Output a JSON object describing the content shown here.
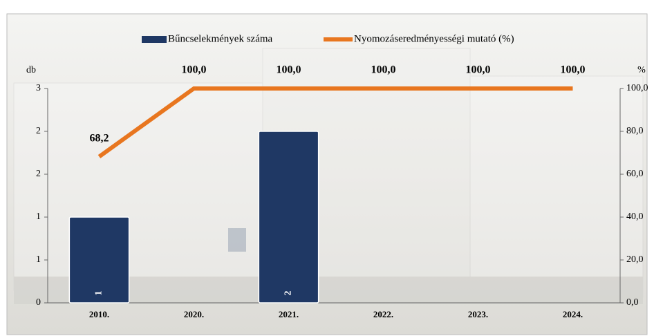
{
  "chart_data": {
    "type": "bar",
    "categories": [
      "2010.",
      "2020.",
      "2021.",
      "2022.",
      "2023.",
      "2024."
    ],
    "y_label": "db",
    "y2_label": "%",
    "series": [
      {
        "name": "Bűncselekmények száma",
        "type": "bar",
        "color": "#1f3864",
        "values": [
          1,
          0,
          2,
          0,
          0,
          0
        ]
      },
      {
        "name": "Nyomozáseredményességi mutató (%)",
        "type": "line",
        "axis": "y2",
        "color": "#e8761f",
        "values": [
          68.2,
          100,
          100,
          100,
          100,
          100
        ],
        "value_labels": [
          "68,2",
          "100,0",
          "100,0",
          "100,0",
          "100,0",
          "100,0"
        ]
      }
    ],
    "ylim": [
      0,
      2.5
    ],
    "yticks": [
      0,
      {
        "value": 0.5,
        "label": "1"
      },
      1,
      {
        "value": 1.5,
        "label": "2"
      },
      2,
      {
        "value": 2.5,
        "label": "3"
      }
    ],
    "y2lim": [
      0,
      100
    ],
    "y2ticks": [
      {
        "value": 0,
        "label": "0,0"
      },
      {
        "value": 20,
        "label": "20,0"
      },
      {
        "value": 40,
        "label": "40,0"
      },
      {
        "value": 60,
        "label": "60,0"
      },
      {
        "value": 80,
        "label": "80,0"
      },
      {
        "value": 100,
        "label": "100,0"
      }
    ],
    "legend": "top"
  }
}
